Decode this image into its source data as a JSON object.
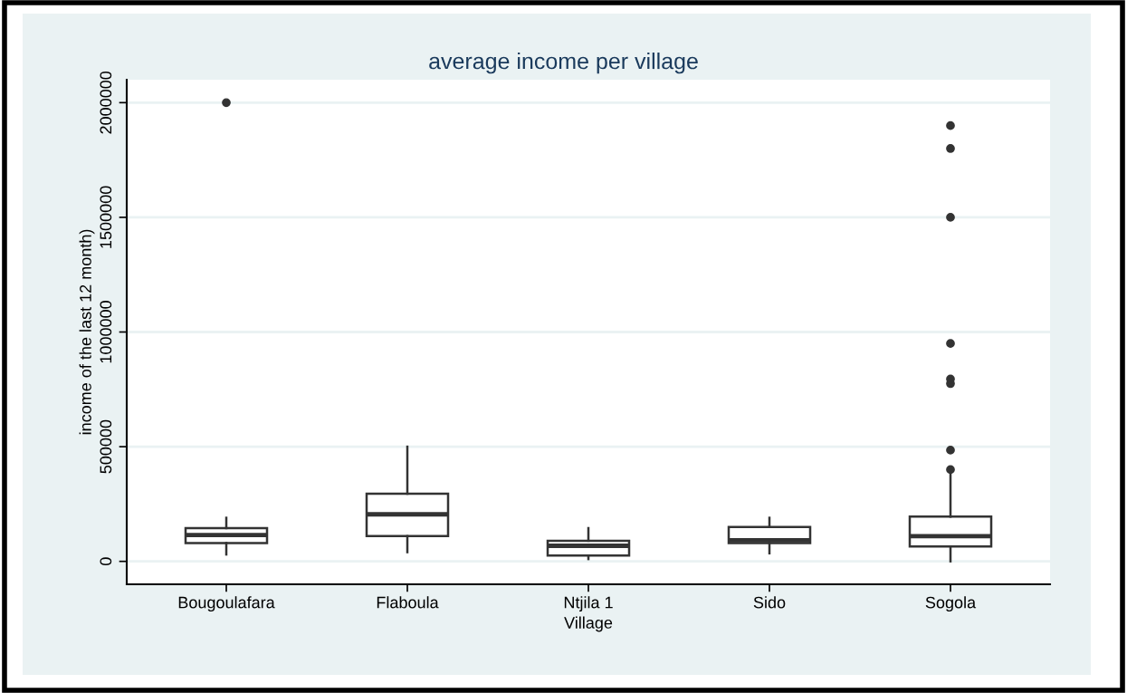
{
  "chart_data": {
    "type": "box",
    "title": "average income per village",
    "xlabel": "Village",
    "ylabel": "income of the last 12 month)",
    "categories": [
      "Bougoulafara",
      "Flaboula",
      "Ntjila 1",
      "Sido",
      "Sogola"
    ],
    "boxes": [
      {
        "low": 30000,
        "q1": 80000,
        "median": 115000,
        "q3": 145000,
        "high": 190000,
        "outliers": [
          2000000
        ]
      },
      {
        "low": 40000,
        "q1": 110000,
        "median": 205000,
        "q3": 295000,
        "high": 500000
      },
      {
        "low": 10000,
        "q1": 25000,
        "median": 68000,
        "q3": 90000,
        "high": 145000
      },
      {
        "low": 35000,
        "q1": 80000,
        "median": 92000,
        "q3": 150000,
        "high": 190000
      },
      {
        "low": 0,
        "q1": 65000,
        "median": 110000,
        "q3": 195000,
        "high": 390000,
        "outliers": [
          400000,
          485000,
          775000,
          795000,
          950000,
          1500000,
          1800000,
          1900000
        ]
      }
    ],
    "color": "#ffffff",
    "ylim": [
      -100000,
      2100000
    ],
    "yticks": [
      0,
      500000,
      1000000,
      1500000,
      2000000
    ],
    "grid": "y",
    "marker": "circle"
  }
}
